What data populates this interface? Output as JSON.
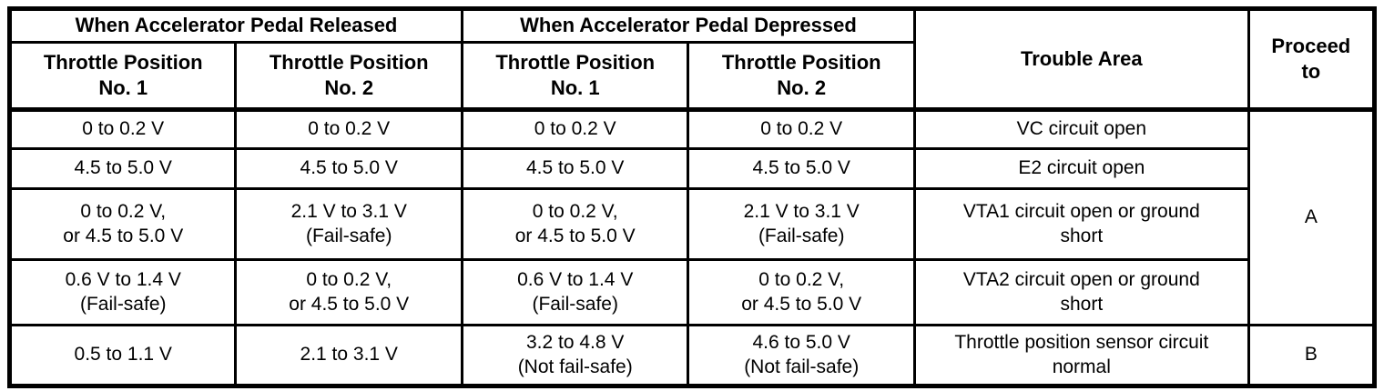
{
  "table": {
    "header": {
      "released": "When Accelerator Pedal Released",
      "depressed": "When Accelerator Pedal Depressed",
      "trouble_area": "Trouble Area",
      "proceed_to": "Proceed\nto",
      "subheaders": [
        "Throttle Position\nNo. 1",
        "Throttle Position\nNo. 2",
        "Throttle Position\nNo. 1",
        "Throttle Position\nNo. 2"
      ]
    },
    "rows": [
      [
        "0 to 0.2 V",
        "0 to 0.2 V",
        "0 to 0.2 V",
        "0 to 0.2 V",
        "VC circuit open"
      ],
      [
        "4.5 to 5.0 V",
        "4.5 to 5.0 V",
        "4.5 to 5.0 V",
        "4.5 to 5.0 V",
        "E2 circuit open"
      ],
      [
        "0 to 0.2 V,\nor 4.5 to 5.0 V",
        "2.1 V to 3.1 V\n(Fail-safe)",
        "0 to 0.2 V,\nor 4.5 to 5.0 V",
        "2.1 V to 3.1 V\n(Fail-safe)",
        "VTA1 circuit open or ground\nshort"
      ],
      [
        "0.6 V to 1.4 V\n(Fail-safe)",
        "0 to 0.2 V,\nor 4.5 to 5.0 V",
        "0.6 V to 1.4 V\n(Fail-safe)",
        "0 to 0.2 V,\nor 4.5 to 5.0 V",
        "VTA2 circuit open or ground\nshort"
      ],
      [
        "0.5 to 1.1 V",
        "2.1 to 3.1 V",
        "3.2 to 4.8 V\n(Not fail-safe)",
        "4.6 to 5.0 V\n(Not fail-safe)",
        "Throttle position sensor circuit\nnormal"
      ]
    ],
    "proceed": [
      "A",
      "B"
    ],
    "colors": {
      "line": "#000000",
      "background": "#ffffff"
    }
  }
}
